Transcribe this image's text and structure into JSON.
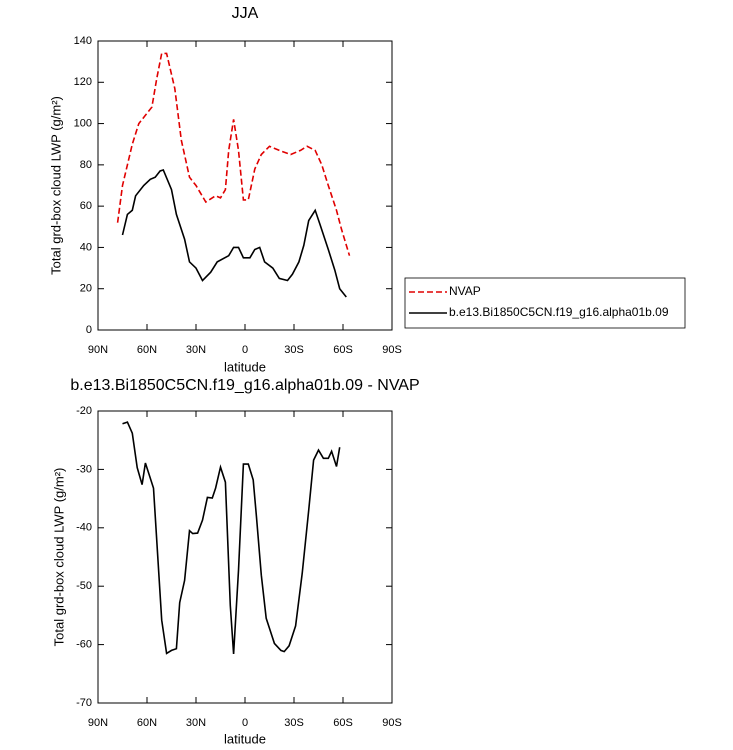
{
  "chart_data": [
    {
      "type": "line",
      "title": "JJA",
      "xlabel": "latitude",
      "ylabel": "Total grd-box cloud LWP (g/m²)",
      "xlim": [
        90,
        -90
      ],
      "xticks": [
        {
          "value": 90,
          "label": "90N"
        },
        {
          "value": 60,
          "label": "60N"
        },
        {
          "value": 30,
          "label": "30N"
        },
        0,
        {
          "value": -30,
          "label": "30S"
        },
        {
          "value": -60,
          "label": "60S"
        },
        {
          "value": -90,
          "label": "90S"
        }
      ],
      "ylim": [
        0,
        140
      ],
      "yticks": [
        0,
        20,
        40,
        60,
        80,
        100,
        120,
        140
      ],
      "legend": "right",
      "series": [
        {
          "name": "NVAP",
          "color": "#e00000",
          "line_style": "dashed",
          "x": [
            78,
            75,
            72,
            69,
            65,
            61,
            57,
            54,
            51,
            48,
            43,
            39,
            34,
            30,
            24,
            18,
            15,
            12,
            10,
            7,
            4,
            1,
            -2,
            -6,
            -10,
            -15,
            -21,
            -28,
            -34,
            -38,
            -43,
            -47,
            -51,
            -56,
            -59,
            -64
          ],
          "values": [
            52,
            70,
            80,
            90,
            100,
            104,
            108,
            122,
            134,
            134,
            117,
            92,
            74,
            70,
            62,
            65,
            64,
            68,
            87,
            102,
            87,
            63,
            63,
            78,
            85,
            89,
            87,
            85,
            87,
            89,
            87,
            80,
            70,
            58,
            49,
            36
          ]
        },
        {
          "name": "b.e13.Bi1850C5CN.f19_g16.alpha01b.09",
          "color": "#000000",
          "line_style": "solid",
          "x": [
            75,
            72,
            69,
            67,
            62,
            58,
            55,
            52,
            50,
            45,
            42,
            37,
            34,
            30,
            26,
            21,
            17,
            10,
            7,
            4,
            1,
            -3,
            -6,
            -9,
            -12,
            -17,
            -21,
            -26,
            -29,
            -33,
            -36,
            -39,
            -43,
            -46,
            -51,
            -55,
            -58,
            -62
          ],
          "values": [
            46,
            56,
            58,
            65,
            70,
            73,
            74,
            77,
            77.5,
            68,
            56,
            44,
            33,
            30,
            24,
            28,
            33,
            36,
            40,
            40,
            35,
            35,
            39,
            40,
            33,
            30,
            25,
            24,
            27,
            33,
            41,
            53,
            58,
            51,
            39,
            29,
            20,
            16
          ]
        }
      ]
    },
    {
      "type": "line",
      "title": "b.e13.Bi1850C5CN.f19_g16.alpha01b.09 - NVAP",
      "xlabel": "latitude",
      "ylabel": "Total grd-box cloud LWP (g/m²)",
      "xlim": [
        90,
        -90
      ],
      "xticks": [
        {
          "value": 90,
          "label": "90N"
        },
        {
          "value": 60,
          "label": "60N"
        },
        {
          "value": 30,
          "label": "30N"
        },
        0,
        {
          "value": -30,
          "label": "30S"
        },
        {
          "value": -60,
          "label": "60S"
        },
        {
          "value": -90,
          "label": "90S"
        }
      ],
      "ylim": [
        -70,
        -20
      ],
      "yticks": [
        -70,
        -60,
        -50,
        -40,
        -30,
        -20
      ],
      "series": [
        {
          "color": "#000000",
          "line_style": "solid",
          "x": [
            75,
            72,
            69,
            66,
            63,
            61,
            56,
            51,
            48,
            45,
            42,
            40,
            37,
            34,
            32,
            29,
            26,
            23,
            20,
            18,
            15,
            12,
            9,
            7,
            4,
            1,
            -2,
            -5,
            -7,
            -10,
            -13,
            -18,
            -22,
            -24,
            -27,
            -31,
            -35,
            -39,
            -42,
            -45,
            -48,
            -51,
            -53,
            -56,
            -58
          ],
          "values": [
            -22.2,
            -21.9,
            -23.8,
            -29.7,
            -32.6,
            -28.9,
            -33.2,
            -55.8,
            -61.5,
            -61,
            -60.7,
            -52.8,
            -49,
            -40.5,
            -41,
            -40.9,
            -38.7,
            -34.8,
            -34.9,
            -33.2,
            -29.6,
            -32.2,
            -53.3,
            -61.6,
            -47.3,
            -29.1,
            -29.1,
            -31.8,
            -38,
            -48.1,
            -55.5,
            -59.8,
            -61,
            -61.2,
            -60.2,
            -56.8,
            -47.8,
            -37,
            -28.4,
            -26.7,
            -28.1,
            -28.1,
            -26.9,
            -29.5,
            -26.2
          ]
        }
      ]
    }
  ]
}
